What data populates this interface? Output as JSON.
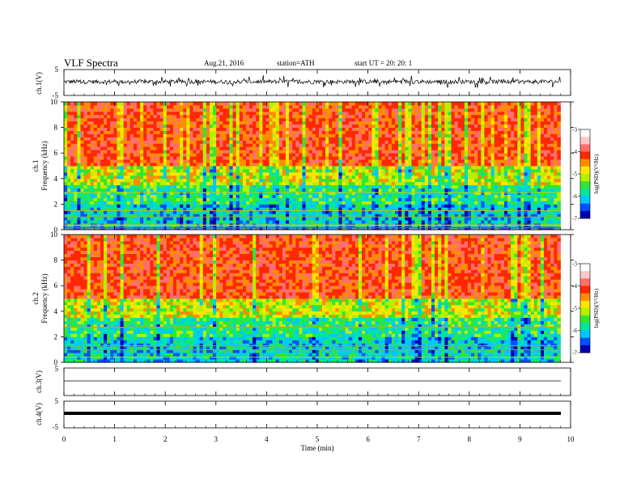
{
  "header": {
    "title": "VLF  Spectra",
    "date": "Aug.21, 2016",
    "station": "station=ATH",
    "start": "start  UT  =   20: 20: 1"
  },
  "colors": {
    "spectrum_scale": [
      "#000000",
      "#0000b4",
      "#0050ff",
      "#00c8ff",
      "#00e6a0",
      "#32e632",
      "#b4f000",
      "#ffe600",
      "#ff8c00",
      "#ff2800",
      "#ff6e6e",
      "#ffc8c8",
      "#ffffff"
    ]
  },
  "chart_data": [
    {
      "type": "line",
      "name": "ch1-waveform",
      "ylabel": "ch.1(V)",
      "ylim": [
        -5,
        5
      ],
      "y_ticks": [
        "5",
        "-5"
      ],
      "xlim": [
        0,
        10
      ],
      "signal": "noisy waveform fluctuating roughly between -2 and 2 V around ~0 for 0-9.8 min"
    },
    {
      "type": "heatmap",
      "name": "ch1-spectrogram",
      "ylabel": "ch.1\nFrequency  (kHz)",
      "ylim": [
        0,
        10
      ],
      "y_ticks": [
        "0",
        "2",
        "4",
        "6",
        "8",
        "10"
      ],
      "xlim": [
        0,
        10
      ],
      "x_data_end": 9.8,
      "colorbar": {
        "label": "log(PSD)(V²/Hz)",
        "range": [
          -7,
          -3
        ],
        "ticks": [
          "-3",
          "-4",
          "-5",
          "-6",
          "-7"
        ]
      },
      "description": "high PSD (red, ~-4) at 5-10 kHz with vertical streaks; mixed green/blue below 4 kHz; horizontal lines near 0.3, 1, 1.5, 2.8 kHz"
    },
    {
      "type": "heatmap",
      "name": "ch2-spectrogram",
      "ylabel": "ch.2\nFrequency  (kHz)",
      "ylim": [
        0,
        10
      ],
      "y_ticks": [
        "0",
        "2",
        "4",
        "6",
        "8",
        "10"
      ],
      "xlim": [
        0,
        10
      ],
      "x_data_end": 9.8,
      "colorbar": {
        "label": "log(PSD)(V²/Hz)",
        "range": [
          -7,
          -3
        ],
        "ticks": [
          "-3",
          "-4",
          "-5",
          "-6",
          "-7"
        ]
      },
      "description": "similar to ch.1; red above ~5 kHz, green/cyan 0-4 kHz, lines near 1, 1.3, 2.7 kHz"
    },
    {
      "type": "line",
      "name": "ch3-waveform",
      "ylabel": "ch.3(V)",
      "ylim": [
        -5,
        5
      ],
      "y_ticks": [
        "5"
      ],
      "xlim": [
        0,
        10
      ],
      "values_description": "nearly flat line slightly above 0 V"
    },
    {
      "type": "line",
      "name": "ch4-waveform",
      "ylabel": "ch.4(V)",
      "ylim": [
        -5,
        5
      ],
      "y_ticks": [
        "5",
        "-5"
      ],
      "xlim": [
        0,
        10
      ],
      "values_description": "thick flat line near 0 V"
    }
  ],
  "x_axis": {
    "label": "Time  (min)",
    "ticks": [
      "0",
      "1",
      "2",
      "3",
      "4",
      "5",
      "6",
      "7",
      "8",
      "9",
      "10"
    ]
  }
}
